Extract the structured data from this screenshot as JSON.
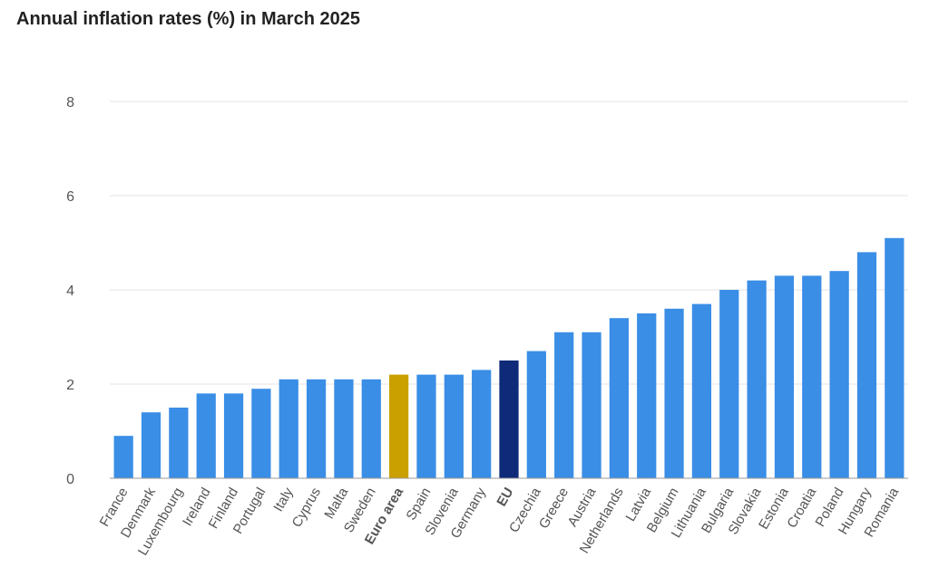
{
  "chart_data": {
    "type": "bar",
    "title": "Annual inflation rates (%) in March 2025",
    "xlabel": "",
    "ylabel": "",
    "ylim": [
      0,
      8
    ],
    "yticks": [
      0,
      2,
      4,
      6,
      8
    ],
    "grid": true,
    "categories": [
      "France",
      "Denmark",
      "Luxembourg",
      "Ireland",
      "Finland",
      "Portugal",
      "Italy",
      "Cyprus",
      "Malta",
      "Sweden",
      "Euro area",
      "Spain",
      "Slovenia",
      "Germany",
      "EU",
      "Czechia",
      "Greece",
      "Austria",
      "Netherlands",
      "Latvia",
      "Belgium",
      "Lithuania",
      "Bulgaria",
      "Slovakia",
      "Estonia",
      "Croatia",
      "Poland",
      "Hungary",
      "Romania"
    ],
    "values": [
      0.9,
      1.4,
      1.5,
      1.8,
      1.8,
      1.9,
      2.1,
      2.1,
      2.1,
      2.1,
      2.2,
      2.2,
      2.2,
      2.3,
      2.5,
      2.7,
      3.1,
      3.1,
      3.4,
      3.5,
      3.6,
      3.7,
      4.0,
      4.2,
      4.3,
      4.3,
      4.4,
      4.8,
      5.1
    ],
    "highlight": {
      "Euro area": "#c9a000",
      "EU": "#0e2a78"
    },
    "bold_categories": [
      "Euro area",
      "EU"
    ],
    "colors": {
      "bar": "#3a8ee6",
      "grid": "#e3e3e3",
      "axis": "#999999"
    }
  }
}
